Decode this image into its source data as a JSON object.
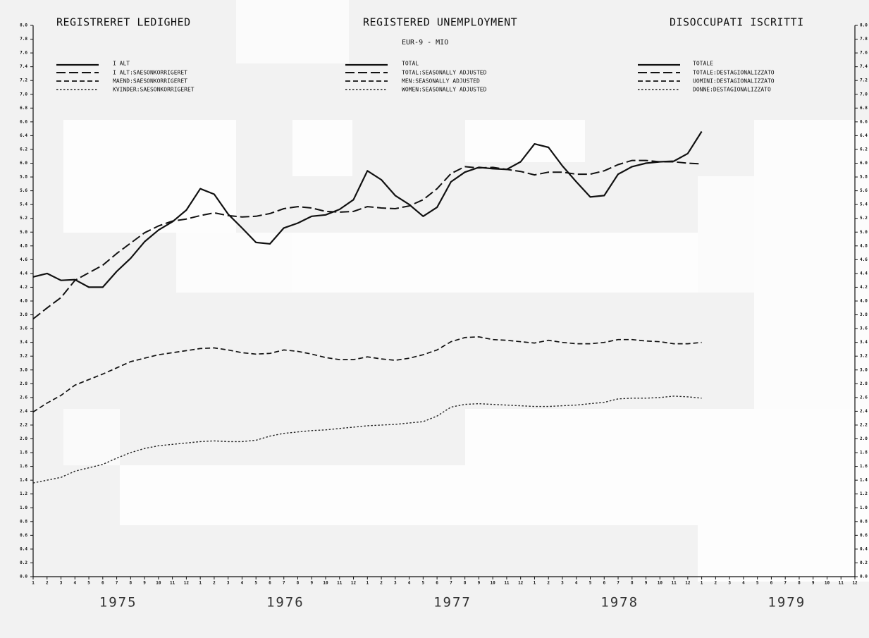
{
  "chart_data": {
    "type": "line",
    "titles": [
      "REGISTRERET LEDIGHED",
      "REGISTERED UNEMPLOYMENT",
      "DISOCCUPATI ISCRITTI"
    ],
    "subtitle": "EUR-9 - MIO",
    "categories": [
      "1",
      "2",
      "3",
      "4",
      "5",
      "6",
      "7",
      "8",
      "9",
      "10",
      "11",
      "12",
      "1",
      "2",
      "3",
      "4",
      "5",
      "6",
      "7",
      "8",
      "9",
      "10",
      "11",
      "12",
      "1",
      "2",
      "3",
      "4",
      "5",
      "6",
      "7",
      "8",
      "9",
      "10",
      "11",
      "12",
      "1",
      "2",
      "3",
      "4",
      "5",
      "6",
      "7",
      "8",
      "9",
      "10",
      "11",
      "12",
      "1",
      "2",
      "3",
      "4",
      "5",
      "6",
      "7",
      "8",
      "9",
      "10",
      "11",
      "12"
    ],
    "years": [
      "1975",
      "1976",
      "1977",
      "1978",
      "1979"
    ],
    "legend_danish": [
      "I ALT",
      "I ALT:SAESONKORRIGERET",
      "MAEND:SAESONKORRIGERET",
      "KVINDER:SAESONKORRIGERET"
    ],
    "legend_italian": [
      "TOTALE",
      "TOTALE:DESTAGIONALIZZATO",
      "UOMINI:DESTAGIONALIZZATO",
      "DONNE:DESTAGIONALIZZATO"
    ],
    "series": [
      {
        "name": "TOTAL",
        "color": "#111111",
        "line_style": "solid",
        "values": [
          4.35,
          4.4,
          4.3,
          4.31,
          4.2,
          4.2,
          4.43,
          4.62,
          4.86,
          5.03,
          5.15,
          5.32,
          5.63,
          5.55,
          5.26,
          5.06,
          4.85,
          4.83,
          5.06,
          5.13,
          5.23,
          5.25,
          5.33,
          5.47,
          5.89,
          5.76,
          5.53,
          5.4,
          5.23,
          5.36,
          5.73,
          5.87,
          5.94,
          5.92,
          5.91,
          6.02,
          6.28,
          6.23,
          5.96,
          5.73,
          5.51,
          5.53,
          5.84,
          5.95,
          6.0,
          6.02,
          6.03,
          6.14,
          6.46,
          null,
          null,
          null,
          null,
          null,
          null,
          null,
          null,
          null,
          null,
          null
        ]
      },
      {
        "name": "TOTAL:SEASONALLY ADJUSTED",
        "color": "#111111",
        "line_style": "long-dash",
        "values": [
          3.74,
          3.9,
          4.05,
          4.3,
          4.41,
          4.52,
          4.69,
          4.84,
          4.99,
          5.09,
          5.16,
          5.19,
          5.24,
          5.28,
          5.24,
          5.22,
          5.23,
          5.27,
          5.34,
          5.37,
          5.35,
          5.3,
          5.29,
          5.3,
          5.37,
          5.35,
          5.34,
          5.38,
          5.47,
          5.63,
          5.85,
          5.95,
          5.93,
          5.94,
          5.91,
          5.88,
          5.83,
          5.87,
          5.87,
          5.84,
          5.84,
          5.89,
          5.98,
          6.04,
          6.04,
          6.02,
          6.02,
          6.0,
          5.99,
          null,
          null,
          null,
          null,
          null,
          null,
          null,
          null,
          null,
          null,
          null
        ]
      },
      {
        "name": "MEN:SEASONALLY ADJUSTED",
        "color": "#111111",
        "line_style": "dash",
        "values": [
          2.39,
          2.52,
          2.63,
          2.78,
          2.86,
          2.94,
          3.03,
          3.12,
          3.17,
          3.22,
          3.25,
          3.28,
          3.31,
          3.32,
          3.29,
          3.25,
          3.23,
          3.24,
          3.29,
          3.27,
          3.23,
          3.18,
          3.15,
          3.15,
          3.19,
          3.16,
          3.14,
          3.17,
          3.22,
          3.29,
          3.41,
          3.47,
          3.48,
          3.44,
          3.43,
          3.41,
          3.39,
          3.43,
          3.4,
          3.38,
          3.38,
          3.4,
          3.44,
          3.44,
          3.42,
          3.41,
          3.38,
          3.38,
          3.4,
          null,
          null,
          null,
          null,
          null,
          null,
          null,
          null,
          null,
          null,
          null
        ]
      },
      {
        "name": "WOMEN:SEASONALLY ADJUSTED",
        "color": "#222222",
        "line_style": "dotted",
        "values": [
          1.36,
          1.4,
          1.44,
          1.53,
          1.58,
          1.63,
          1.72,
          1.8,
          1.86,
          1.9,
          1.92,
          1.94,
          1.96,
          1.97,
          1.96,
          1.96,
          1.98,
          2.04,
          2.08,
          2.1,
          2.12,
          2.13,
          2.15,
          2.17,
          2.19,
          2.2,
          2.21,
          2.23,
          2.25,
          2.33,
          2.46,
          2.5,
          2.51,
          2.5,
          2.49,
          2.48,
          2.47,
          2.47,
          2.48,
          2.49,
          2.51,
          2.53,
          2.58,
          2.59,
          2.59,
          2.6,
          2.62,
          2.61,
          2.59,
          null,
          null,
          null,
          null,
          null,
          null,
          null,
          null,
          null,
          null,
          null
        ]
      }
    ],
    "ylim": [
      0,
      8
    ],
    "yticks": [
      {
        "value": 0,
        "label": "0.0"
      },
      0.2,
      0.4,
      0.6,
      0.8,
      {
        "value": 1,
        "label": "1.0"
      },
      1.2,
      1.4,
      1.6,
      1.8,
      {
        "value": 2,
        "label": "2.0"
      },
      2.2,
      2.4,
      2.6,
      2.8,
      {
        "value": 3,
        "label": "3.0"
      },
      3.2,
      3.4,
      3.6,
      3.8,
      {
        "value": 4,
        "label": "4.0"
      },
      4.2,
      4.4,
      4.6,
      4.8,
      {
        "value": 5,
        "label": "5.0"
      },
      5.2,
      5.4,
      5.6,
      5.8,
      {
        "value": 6,
        "label": "6.0"
      },
      6.2,
      6.4,
      6.6,
      6.8,
      {
        "value": 7,
        "label": "7.0"
      },
      7.2,
      7.4,
      7.6,
      7.8,
      {
        "value": 8,
        "label": "8.0"
      }
    ],
    "grid": false
  }
}
